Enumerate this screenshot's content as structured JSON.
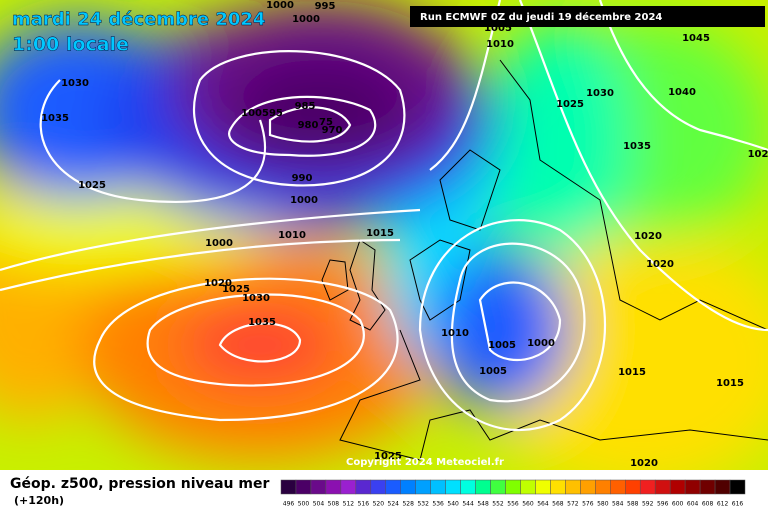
{
  "header": {
    "title": "mardi 24 décembre 2024",
    "time": "1:00 locale",
    "run": "Run ECMWF 0Z du jeudi 19 décembre 2024"
  },
  "map": {
    "isobar_labels": [
      "1000",
      "995",
      "1000",
      "1030",
      "1035",
      "1025",
      "100595",
      "985",
      "980",
      "75",
      "970",
      "990",
      "1000",
      "1000",
      "1010",
      "1015",
      "1020",
      "1025",
      "1030",
      "1035",
      "1005",
      "1010",
      "1045",
      "1030",
      "1025",
      "1040",
      "1035",
      "1020",
      "1020",
      "1010",
      "1005",
      "1000",
      "1005",
      "1015",
      "1015",
      "1025",
      "1020",
      "102"
    ],
    "copyright": "Copyright 2024 Meteociel.fr"
  },
  "footer": {
    "title": "Géop. z500, pression niveau mer",
    "forecast": "(+120h)",
    "scale": [
      496,
      500,
      504,
      508,
      512,
      516,
      520,
      524,
      528,
      532,
      536,
      540,
      544,
      548,
      552,
      556,
      560,
      564,
      568,
      572,
      576,
      580,
      584,
      588,
      592,
      596,
      600,
      604,
      608,
      612,
      616
    ],
    "colors": [
      "#2a0040",
      "#4b0066",
      "#6a0a8a",
      "#8b10b0",
      "#9a20d0",
      "#5a28d0",
      "#3a40f0",
      "#1a5cff",
      "#0080ff",
      "#00a0ff",
      "#00c0ff",
      "#00e0ff",
      "#00ffe0",
      "#00ff90",
      "#40ff40",
      "#80ff00",
      "#c0ff00",
      "#f0ff00",
      "#ffe000",
      "#ffc000",
      "#ffa000",
      "#ff8000",
      "#ff6000",
      "#ff4000",
      "#f02020",
      "#d01010",
      "#b00000",
      "#900000",
      "#700000",
      "#500000",
      "#000000"
    ]
  }
}
